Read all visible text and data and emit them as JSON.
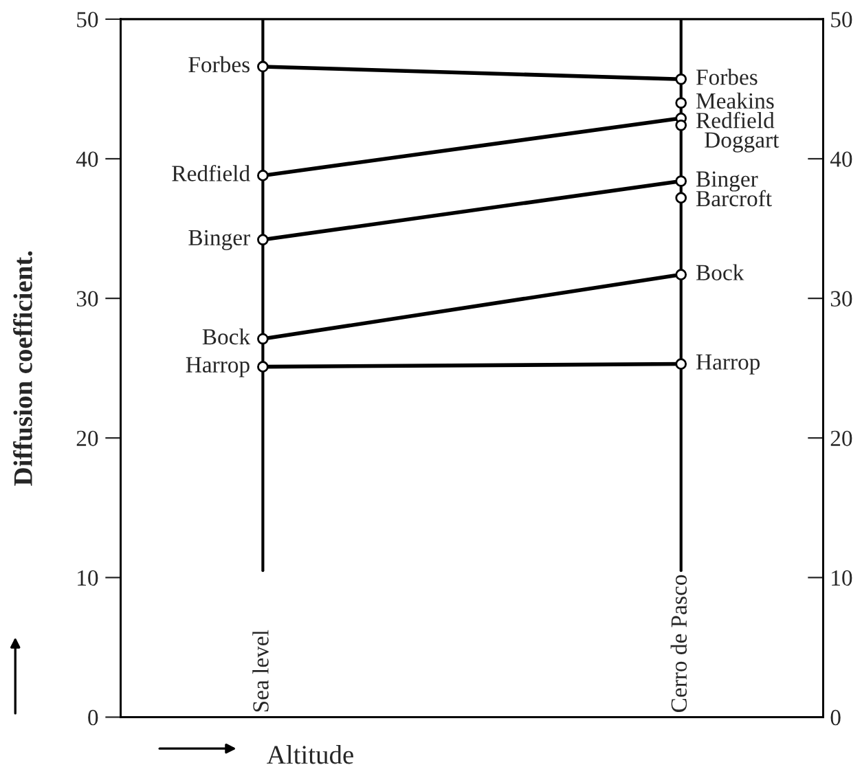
{
  "chart_data": {
    "type": "line",
    "xlabel": "Altitude",
    "ylabel": "Diffusion coefficient.",
    "categories": [
      "Sea level",
      "Cerro de Pasco"
    ],
    "series": [
      {
        "name": "Forbes",
        "color": "#000000",
        "values": [
          46.6,
          45.7
        ]
      },
      {
        "name": "Meakins",
        "color": "#000000",
        "values": [
          null,
          44.0
        ]
      },
      {
        "name": "Redfield",
        "color": "#000000",
        "values": [
          38.8,
          42.9
        ]
      },
      {
        "name": "Doggart",
        "color": "#000000",
        "values": [
          null,
          42.4
        ]
      },
      {
        "name": "Binger",
        "color": "#000000",
        "values": [
          34.2,
          38.4
        ]
      },
      {
        "name": "Barcroft",
        "color": "#000000",
        "values": [
          null,
          37.2
        ]
      },
      {
        "name": "Bock",
        "color": "#000000",
        "values": [
          27.1,
          31.7
        ]
      },
      {
        "name": "Harrop",
        "color": "#000000",
        "values": [
          25.1,
          25.3
        ]
      }
    ],
    "ylim": [
      0,
      50
    ],
    "yticks": [
      0,
      10,
      20,
      30,
      40,
      50
    ],
    "y2lim": [
      0,
      50
    ],
    "y2ticks": [
      0,
      10,
      20,
      30,
      40,
      50
    ],
    "ref_lines": [
      {
        "axis": "x",
        "value": "Sea level"
      },
      {
        "axis": "x",
        "value": "Cerro de Pasco"
      }
    ],
    "marker": "circle",
    "line_style": "solid",
    "grid": false,
    "legend": false
  }
}
